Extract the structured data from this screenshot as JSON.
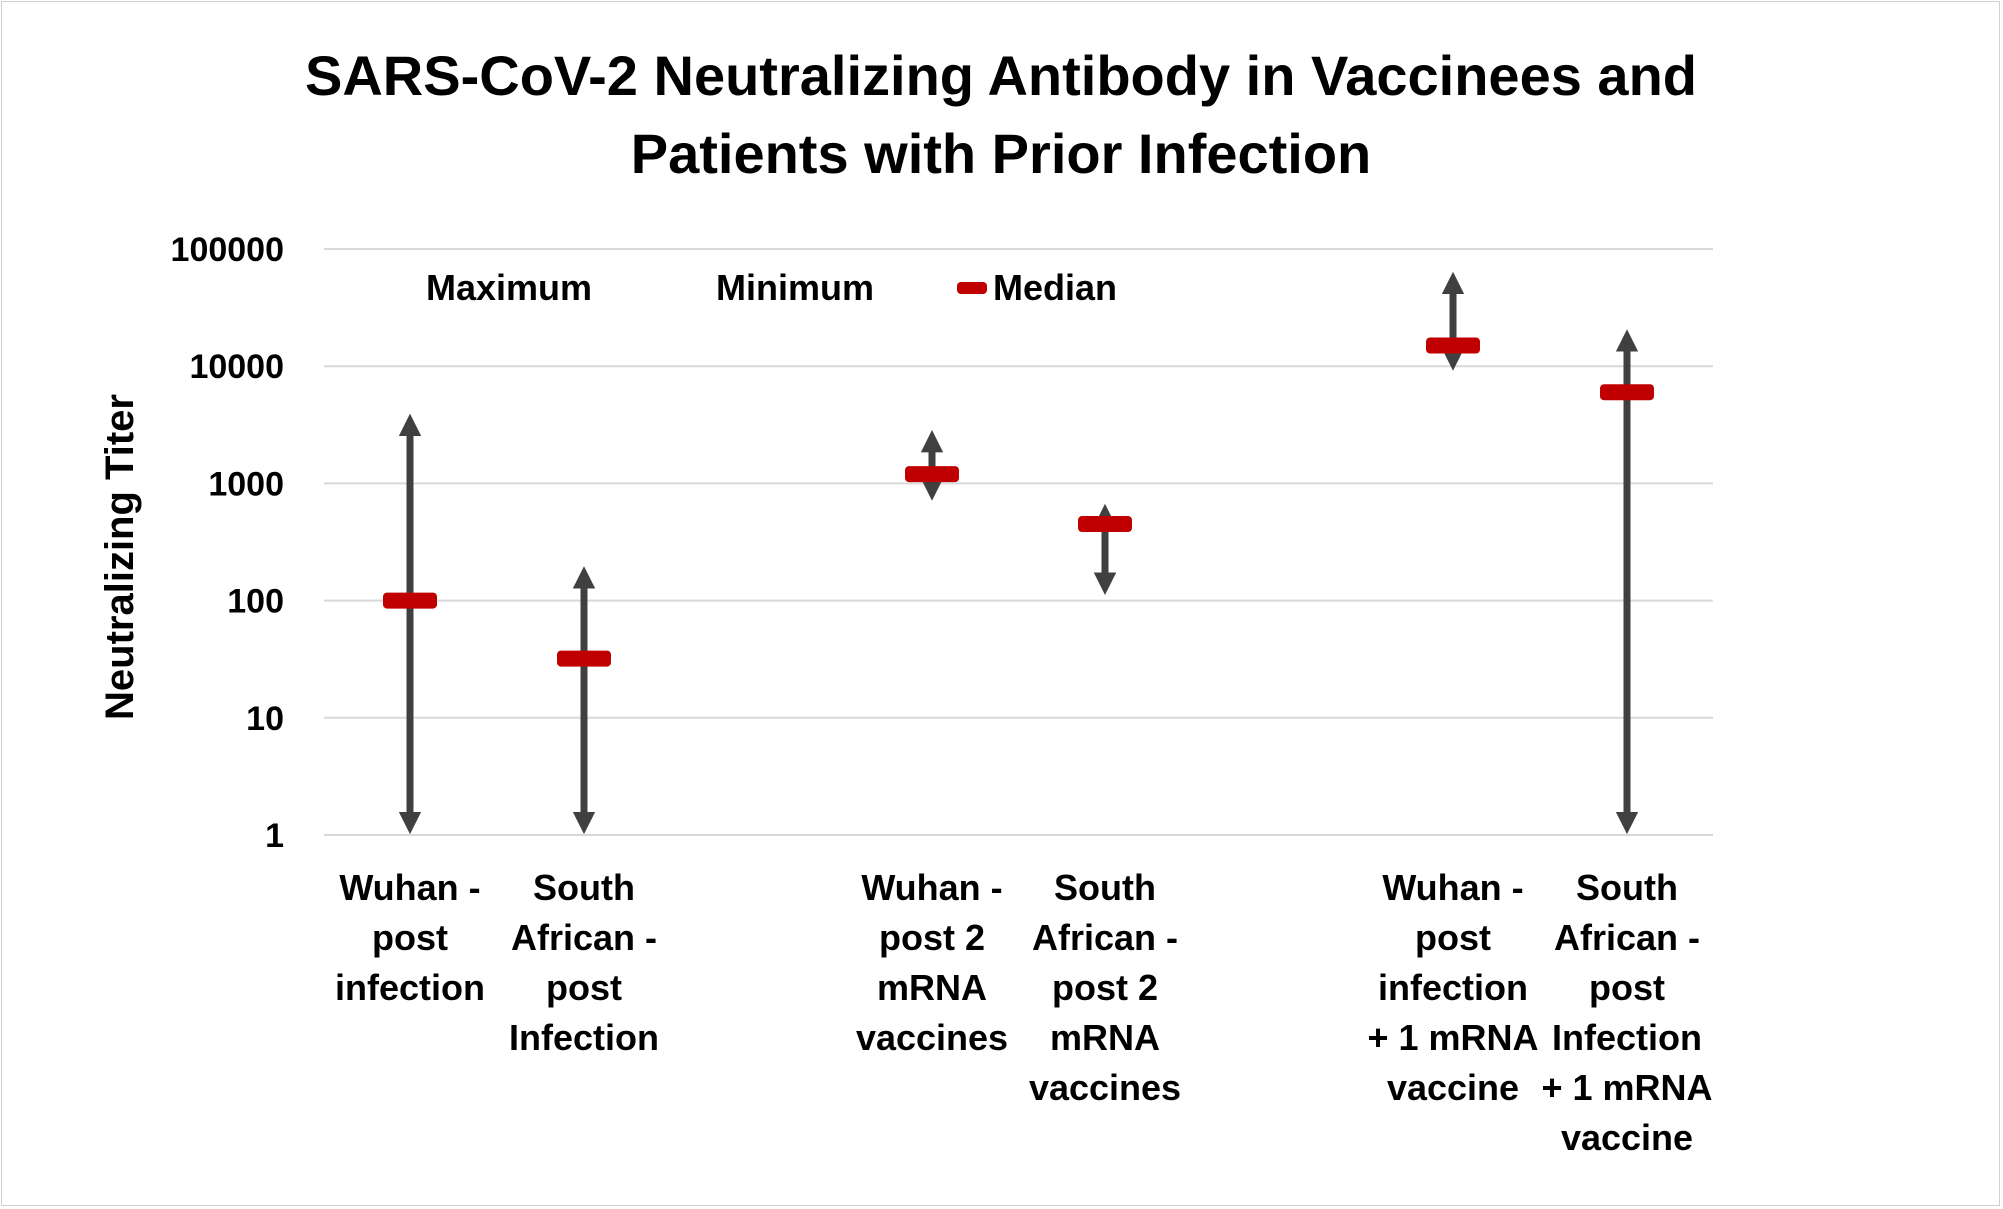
{
  "chart_data": {
    "type": "scatter",
    "title_lines": [
      "SARS-CoV-2 Neutralizing Antibody in Vaccinees and",
      "Patients with Prior Infection"
    ],
    "ylabel": "Neutralizing Titer",
    "yscale": "log",
    "ylim": [
      1,
      100000
    ],
    "yticks": [
      1,
      10,
      100,
      1000,
      10000,
      100000
    ],
    "ytick_labels": [
      "1",
      "10",
      "100",
      "1000",
      "10000",
      "100000"
    ],
    "grid": true,
    "legend": {
      "placement": "top",
      "entries": [
        "Maximum",
        "Minimum",
        "Median"
      ]
    },
    "colors": {
      "median": "#c00000",
      "range": "#404040",
      "grid": "#d9d9d9"
    },
    "categories": [
      {
        "label_lines": [
          "Wuhan -",
          "post",
          "infection"
        ],
        "x_slot": 1
      },
      {
        "label_lines": [
          "South",
          "African -",
          "post",
          "Infection"
        ],
        "x_slot": 2
      },
      {
        "label_lines": [
          "Wuhan -",
          "post 2",
          "mRNA",
          "vaccines"
        ],
        "x_slot": 4
      },
      {
        "label_lines": [
          "South",
          "African -",
          "post 2",
          "mRNA",
          "vaccines"
        ],
        "x_slot": 5
      },
      {
        "label_lines": [
          "Wuhan -",
          "post",
          "infection",
          "+ 1 mRNA",
          "vaccine"
        ],
        "x_slot": 7
      },
      {
        "label_lines": [
          "South",
          "African -",
          "post",
          "Infection",
          "+ 1 mRNA",
          "vaccine"
        ],
        "x_slot": 8
      }
    ],
    "series": [
      {
        "name": "Maximum",
        "values": [
          4000,
          200,
          2900,
          680,
          65000,
          21000
        ]
      },
      {
        "name": "Minimum",
        "values": [
          1,
          1,
          700,
          110,
          9000,
          1
        ]
      },
      {
        "name": "Median",
        "values": [
          100,
          32,
          1200,
          450,
          15000,
          6000
        ]
      }
    ]
  }
}
